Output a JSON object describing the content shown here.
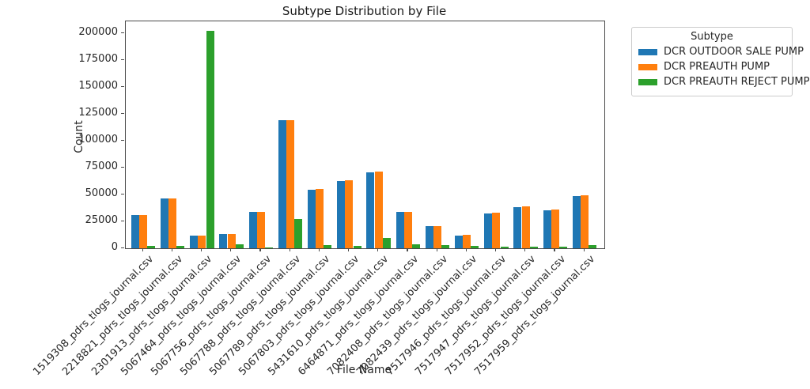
{
  "figure": {
    "title": "Subtype Distribution by File"
  },
  "chart_data": {
    "type": "bar",
    "title": "Subtype Distribution by File",
    "xlabel": "File Name",
    "ylabel": "Count",
    "ylim": [
      0,
      211000
    ],
    "yticks": [
      0,
      25000,
      50000,
      75000,
      100000,
      125000,
      150000,
      175000,
      200000
    ],
    "grid": false,
    "legend_title": "Subtype",
    "legend_position": "outside upper right",
    "categories": [
      "1519308_pdrs_tlogs_journal.csv",
      "2218821_pdrs_tlogs_journal.csv",
      "2301913_pdrs_tlogs_journal.csv",
      "5067464_pdrs_tlogs_journal.csv",
      "5067756_pdrs_tlogs_journal.csv",
      "5067788_pdrs_tlogs_journal.csv",
      "5067789_pdrs_tlogs_journal.csv",
      "5067803_pdrs_tlogs_journal.csv",
      "5431610_pdrs_tlogs_journal.csv",
      "6464871_pdrs_tlogs_journal.csv",
      "7082408_pdrs_tlogs_journal.csv",
      "7082439_pdrs_tlogs_journal.csv",
      "7517946_pdrs_tlogs_journal.csv",
      "7517947_pdrs_tlogs_journal.csv",
      "7517952_pdrs_tlogs_journal.csv",
      "7517959_pdrs_tlogs_journal.csv"
    ],
    "series": [
      {
        "name": "DCR OUTDOOR SALE PUMP",
        "color": "#1f77b4",
        "values": [
          31000,
          46500,
          11500,
          13500,
          33500,
          119000,
          54500,
          62500,
          70500,
          33500,
          20500,
          12000,
          32500,
          38500,
          35500,
          48500
        ]
      },
      {
        "name": "DCR PREAUTH PUMP",
        "color": "#ff7f0e",
        "values": [
          31000,
          46500,
          11500,
          13000,
          33500,
          119500,
          55000,
          63000,
          71000,
          34000,
          20500,
          12500,
          33000,
          39000,
          36000,
          49000
        ]
      },
      {
        "name": "DCR PREAUTH REJECT PUMP",
        "color": "#2ca02c",
        "values": [
          2000,
          2500,
          202000,
          3500,
          1000,
          27000,
          3300,
          2000,
          9300,
          3500,
          3000,
          2000,
          1500,
          1200,
          1200,
          2700
        ]
      }
    ]
  }
}
